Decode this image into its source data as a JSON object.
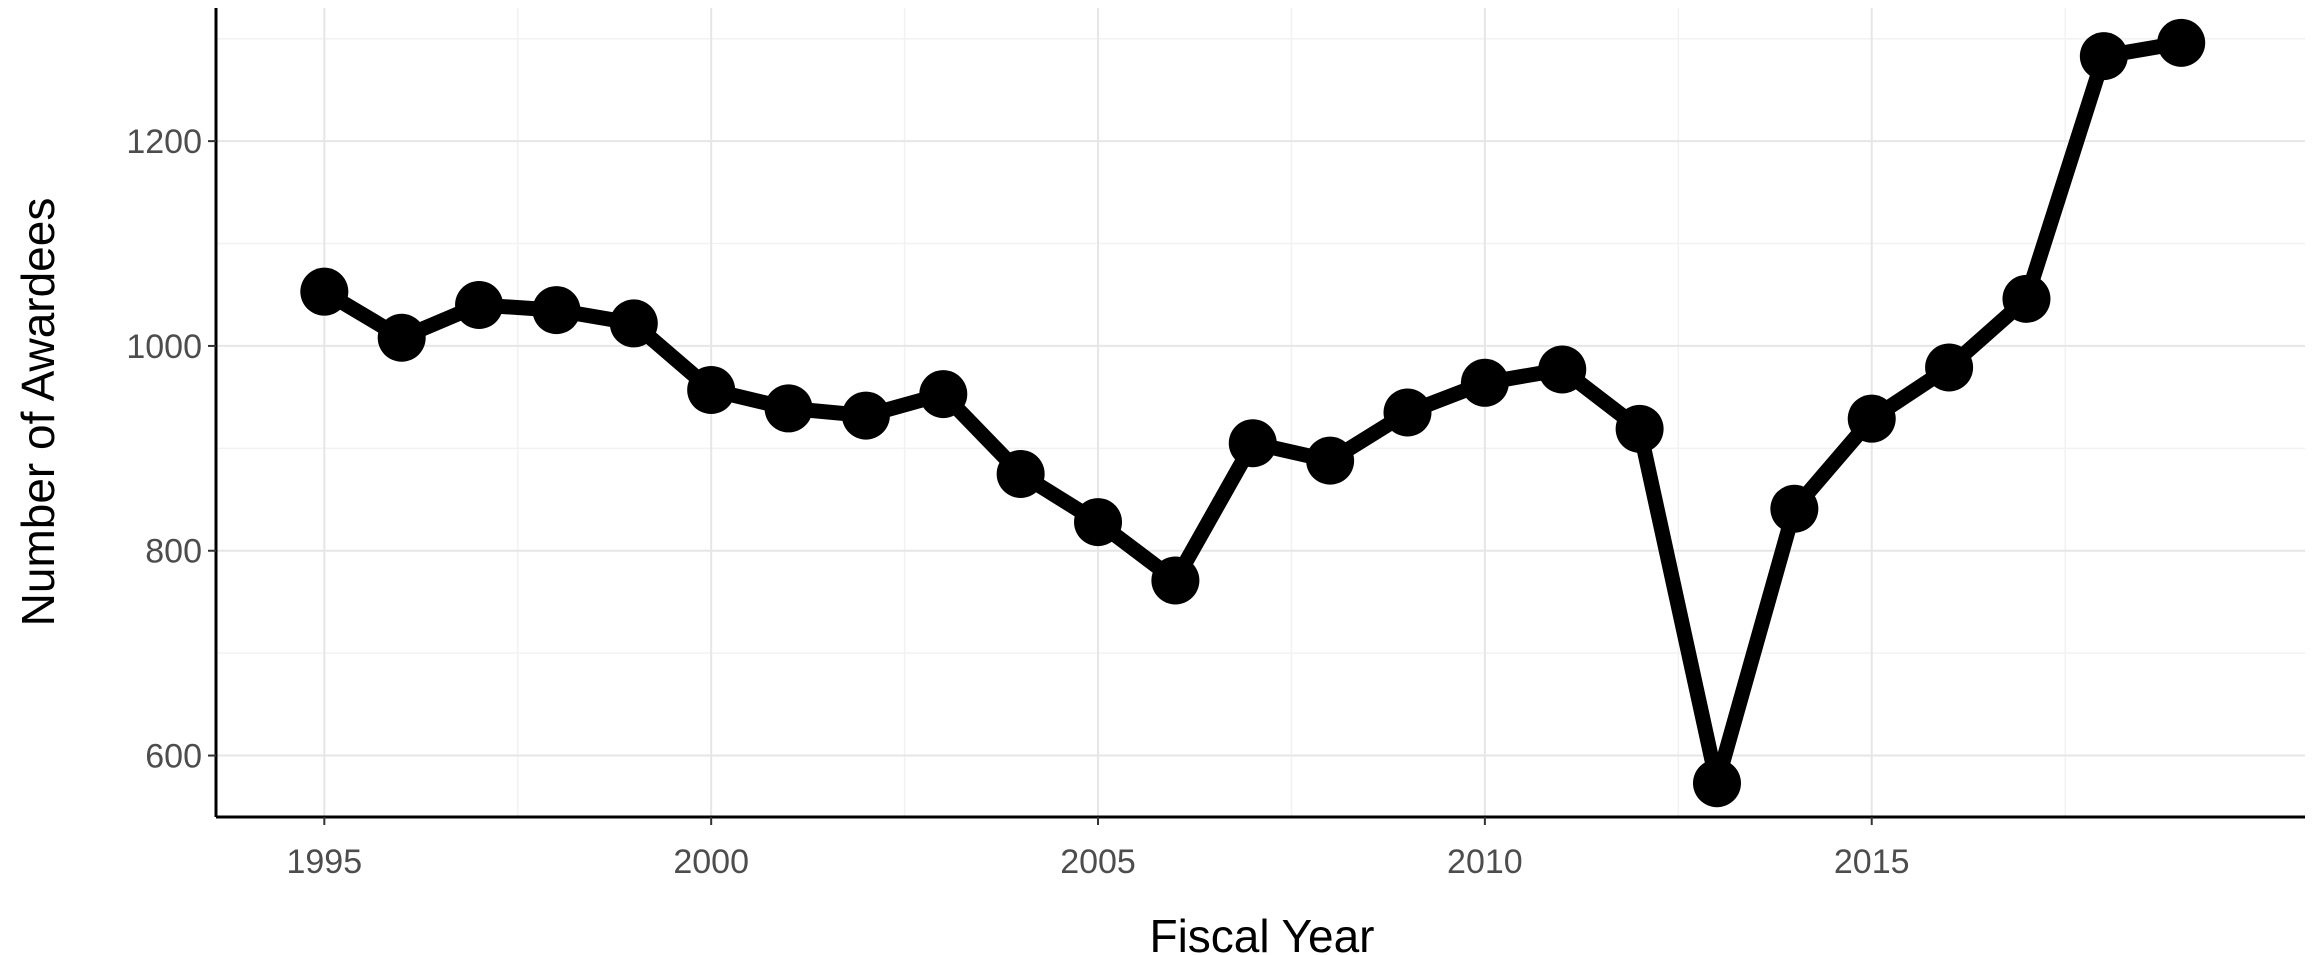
{
  "chart_data": {
    "type": "line",
    "xlabel": "Fiscal Year",
    "ylabel": "Number of Awardees",
    "x": [
      1995,
      1996,
      1997,
      1998,
      1999,
      2000,
      2001,
      2002,
      2003,
      2004,
      2005,
      2006,
      2007,
      2008,
      2009,
      2010,
      2011,
      2012,
      2013,
      2014,
      2015,
      2016,
      2017,
      2018,
      2019
    ],
    "series": [
      {
        "values": [
          1053,
          1008,
          1040,
          1035,
          1022,
          957,
          939,
          932,
          953,
          875,
          828,
          771,
          905,
          888,
          935,
          964,
          977,
          919,
          573,
          841,
          929,
          979,
          1046,
          1283,
          1296
        ]
      }
    ],
    "xlim": [
      1993.6,
      2020.6
    ],
    "ylim": [
      540,
      1330
    ],
    "x_ticks": [
      "1995",
      "2000",
      "2005",
      "2010",
      "2015"
    ],
    "y_ticks": [
      "600",
      "800",
      "1000",
      "1200"
    ],
    "grid": true,
    "line_color": "#000000",
    "marker_color": "#000000",
    "grid_color": "#e6e6e6"
  }
}
